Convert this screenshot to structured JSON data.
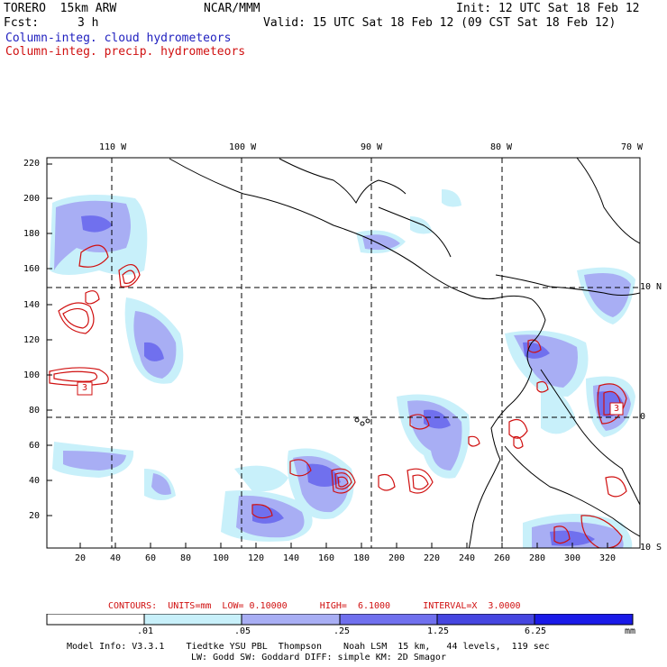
{
  "header": {
    "model": "TORERO  15km ARW",
    "center": "NCAR/MMM",
    "init": "Init: 12 UTC Sat 18 Feb 12",
    "fcst_label": "Fcst:",
    "fcst_value": "3 h",
    "valid": "Valid: 15 UTC Sat 18 Feb 12 (09 CST Sat 18 Feb 12)",
    "field1": "Column-integ. cloud hydrometeors",
    "field2": "Column-integ. precip. hydrometeors",
    "colors": {
      "field1": "#1f1fbf",
      "field2": "#d01010"
    }
  },
  "axes": {
    "top_lon_labels": [
      "110 W",
      "100 W",
      "90 W",
      "80 W",
      "70 W"
    ],
    "right_lat_labels": [
      "10 N",
      "0",
      "10 S"
    ],
    "left_y_ticks": [
      "220",
      "200",
      "180",
      "160",
      "140",
      "120",
      "100",
      "80",
      "60",
      "40",
      "20"
    ],
    "bottom_x_ticks": [
      "20",
      "40",
      "60",
      "80",
      "100",
      "120",
      "140",
      "160",
      "180",
      "200",
      "220",
      "240",
      "260",
      "280",
      "300",
      "320"
    ]
  },
  "contour_info": {
    "text": "CONTOURS:  UNITS=mm  LOW= 0.10000      HIGH=  6.1000      INTERVAL=X  3.0000",
    "box_labels": [
      "3",
      "3"
    ]
  },
  "colorbar": {
    "labels": [
      ".01",
      ".05",
      ".25",
      "1.25",
      "6.25"
    ],
    "unit": "mm",
    "colors": [
      "#ffffff",
      "#c8f0fa",
      "#a8aef4",
      "#7070ee",
      "#4646e0",
      "#1a1ae8"
    ]
  },
  "footer": {
    "line1": "Model Info: V3.3.1    Tiedtke YSU PBL  Thompson    Noah LSM  15 km,   44 levels,  119 sec",
    "line2": "LW: Godd SW: Goddard DIFF: simple KM: 2D Smagor"
  }
}
